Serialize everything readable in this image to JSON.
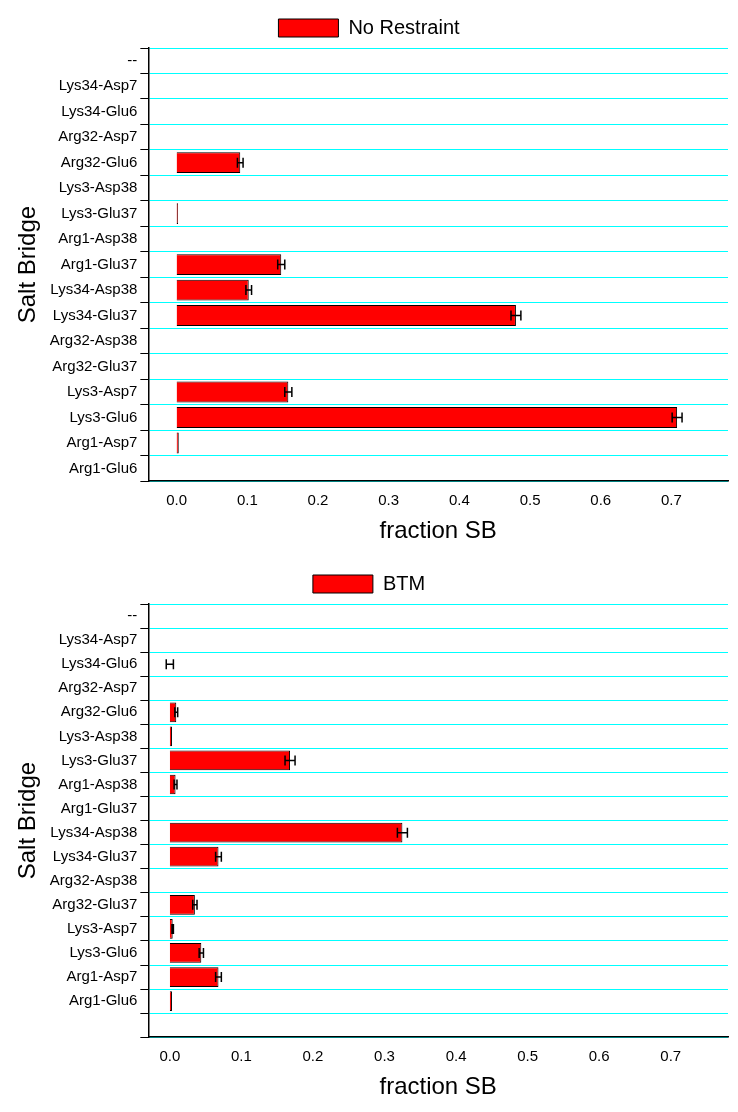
{
  "chart_data": [
    {
      "type": "bar",
      "orientation": "horizontal",
      "xlabel": "fraction SB",
      "ylabel": "Salt Bridge",
      "categories": [
        "--",
        "Lys34-Asp7",
        "Lys34-Glu6",
        "Arg32-Asp7",
        "Arg32-Glu6",
        "Lys3-Asp38",
        "Lys3-Glu37",
        "Arg1-Asp38",
        "Arg1-Glu37",
        "Lys34-Asp38",
        "Lys34-Glu37",
        "Arg32-Asp38",
        "Arg32-Glu37",
        "Lys3-Asp7",
        "Lys3-Glu6",
        "Arg1-Asp7",
        "Arg1-Glu6"
      ],
      "series": [
        {
          "name": "No Restraint",
          "color": "#ff0000",
          "values": [
            null,
            0,
            0,
            0,
            0.09,
            0,
            0.002,
            0,
            0.148,
            0.102,
            0.48,
            0,
            0,
            0.158,
            0.708,
            0.003,
            0
          ],
          "errors": [
            null,
            null,
            null,
            null,
            0.004,
            null,
            null,
            null,
            0.005,
            0.004,
            0.007,
            null,
            null,
            0.005,
            0.007,
            null,
            null
          ]
        }
      ],
      "xlim": [
        -0.04,
        0.78
      ],
      "xticks": [
        {
          "value": 0,
          "label": "0.0"
        },
        {
          "value": 0.1,
          "label": "0.1"
        },
        {
          "value": 0.2,
          "label": "0.2"
        },
        {
          "value": 0.3,
          "label": "0.3"
        },
        {
          "value": 0.4,
          "label": "0.4"
        },
        {
          "value": 0.5,
          "label": "0.5"
        },
        {
          "value": 0.6,
          "label": "0.6"
        },
        {
          "value": 0.7,
          "label": "0.7"
        }
      ],
      "grid": "y",
      "legend": "top"
    },
    {
      "type": "bar",
      "orientation": "horizontal",
      "xlabel": "fraction SB",
      "ylabel": "Salt Bridge",
      "categories": [
        "--",
        "Lys34-Asp7",
        "Lys34-Glu6",
        "Arg32-Asp7",
        "Arg32-Glu6",
        "Lys3-Asp38",
        "Lys3-Glu37",
        "Arg1-Asp38",
        "Arg1-Glu37",
        "Lys34-Asp38",
        "Lys34-Glu37",
        "Arg32-Asp38",
        "Arg32-Glu37",
        "Lys3-Asp7",
        "Lys3-Glu6",
        "Arg1-Asp7",
        "Arg1-Glu6",
        null
      ],
      "series": [
        {
          "name": "BTM",
          "color": "#ff0000",
          "values": [
            null,
            0,
            0,
            0,
            0.009,
            0.003,
            0.168,
            0.008,
            0,
            0.325,
            0.068,
            0,
            0.035,
            0.004,
            0.044,
            0.068,
            0.003,
            null
          ],
          "errors": [
            null,
            null,
            0.005,
            null,
            0.002,
            null,
            0.007,
            0.002,
            null,
            0.007,
            0.004,
            null,
            0.003,
            0.001,
            0.003,
            0.004,
            null,
            null
          ]
        }
      ],
      "xlim": [
        -0.03,
        0.78
      ],
      "xticks": [
        {
          "value": 0,
          "label": "0.0"
        },
        {
          "value": 0.1,
          "label": "0.1"
        },
        {
          "value": 0.2,
          "label": "0.2"
        },
        {
          "value": 0.3,
          "label": "0.3"
        },
        {
          "value": 0.4,
          "label": "0.4"
        },
        {
          "value": 0.5,
          "label": "0.5"
        },
        {
          "value": 0.6,
          "label": "0.6"
        },
        {
          "value": 0.7,
          "label": "0.7"
        }
      ],
      "grid": "y",
      "legend": "top"
    }
  ]
}
